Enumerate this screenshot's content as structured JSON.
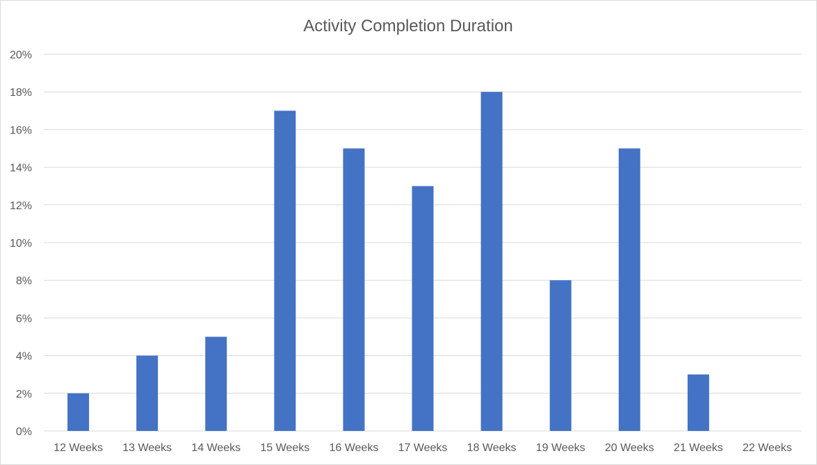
{
  "chart_data": {
    "type": "bar",
    "title": "Activity Completion Duration",
    "xlabel": "",
    "ylabel": "",
    "categories": [
      "12 Weeks",
      "13 Weeks",
      "14 Weeks",
      "15 Weeks",
      "16 Weeks",
      "17 Weeks",
      "18 Weeks",
      "19 Weeks",
      "20 Weeks",
      "21 Weeks",
      "22 Weeks"
    ],
    "values": [
      0.02,
      0.04,
      0.05,
      0.17,
      0.15,
      0.13,
      0.18,
      0.08,
      0.15,
      0.03,
      0
    ],
    "ylim": [
      0,
      0.2
    ],
    "yticks": [
      "0%",
      "2%",
      "4%",
      "6%",
      "8%",
      "10%",
      "12%",
      "14%",
      "16%",
      "18%",
      "20%"
    ],
    "grid": true,
    "legend": "none",
    "bar_color": "#4472c4"
  }
}
